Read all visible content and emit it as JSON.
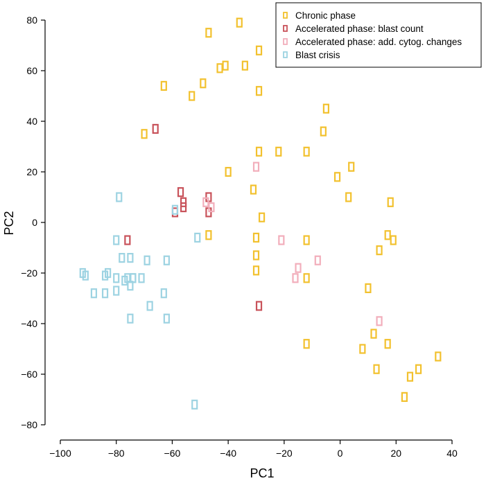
{
  "chart_data": {
    "type": "scatter",
    "title": "",
    "xlabel": "PC1",
    "ylabel": "PC2",
    "xlim": [
      -100,
      40
    ],
    "ylim": [
      -80,
      80
    ],
    "xticks": [
      -100,
      -80,
      -60,
      -40,
      -20,
      0,
      20,
      40
    ],
    "yticks": [
      -80,
      -60,
      -40,
      -20,
      0,
      20,
      40,
      60,
      80
    ],
    "xtick_labels": [
      "−100",
      "−80",
      "−60",
      "−40",
      "−20",
      "0",
      "20",
      "40"
    ],
    "ytick_labels": [
      "−80",
      "−60",
      "−40",
      "−20",
      "0",
      "20",
      "40",
      "60",
      "80"
    ],
    "grid": false,
    "legend_position": "top-right",
    "marker": "open-rectangle",
    "series": [
      {
        "name": "Chronic phase",
        "color": "#f2c12e",
        "x": [
          -36,
          -47,
          -29,
          -34,
          -41,
          -43,
          -49,
          -53,
          -63,
          -29,
          -70,
          -5,
          -6,
          -29,
          -22,
          -12,
          -40,
          4,
          -1,
          -31,
          3,
          18,
          -28,
          17,
          -30,
          -47,
          -12,
          19,
          14,
          -30,
          -12,
          -30,
          10,
          12,
          17,
          8,
          -12,
          35,
          13,
          28,
          25,
          23
        ],
        "y": [
          79,
          75,
          68,
          62,
          62,
          61,
          55,
          50,
          54,
          52,
          35,
          45,
          36,
          28,
          28,
          28,
          20,
          22,
          18,
          13,
          10,
          8,
          2,
          -5,
          -6,
          -5,
          -7,
          -7,
          -11,
          -13,
          -22,
          -19,
          -26,
          -44,
          -48,
          -50,
          -48,
          -53,
          -58,
          -58,
          -61,
          -69
        ]
      },
      {
        "name": "Accelerated phase: blast count",
        "color": "#c8525a",
        "x": [
          -66,
          -57,
          -56,
          -56,
          -47,
          -47,
          -59,
          -76,
          -29
        ],
        "y": [
          37,
          12,
          8,
          6,
          10,
          4,
          4,
          -7,
          -33
        ]
      },
      {
        "name": "Accelerated phase: add. cytog. changes",
        "color": "#f2aebb",
        "x": [
          -30,
          -48,
          -46,
          -21,
          -15,
          -8,
          -16,
          14
        ],
        "y": [
          22,
          8,
          6,
          -7,
          -18,
          -15,
          -22,
          -39
        ]
      },
      {
        "name": "Blast crisis",
        "color": "#9dd3e2",
        "x": [
          -79,
          -59,
          -51,
          -80,
          -75,
          -78,
          -69,
          -62,
          -92,
          -91,
          -83,
          -84,
          -80,
          -76,
          -74,
          -77,
          -71,
          -74,
          -75,
          -88,
          -84,
          -80,
          -63,
          -68,
          -75,
          -62,
          -52
        ],
        "y": [
          10,
          5,
          -6,
          -7,
          -14,
          -14,
          -15,
          -15,
          -20,
          -21,
          -20,
          -21,
          -22,
          -22,
          -22,
          -23,
          -22,
          -22,
          -25,
          -28,
          -28,
          -27,
          -28,
          -33,
          -38,
          -38,
          -72
        ]
      }
    ]
  }
}
